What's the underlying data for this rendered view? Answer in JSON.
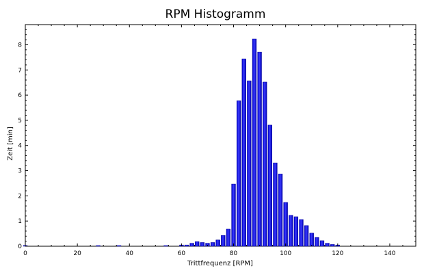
{
  "chart_data": {
    "type": "bar",
    "title": "RPM Histogramm",
    "xlabel": "Trittfrequenz [RPM]",
    "ylabel": "Zeit [min]",
    "xlim": [
      0,
      150
    ],
    "ylim": [
      0,
      8.8
    ],
    "x_ticks": [
      0,
      20,
      40,
      60,
      80,
      100,
      120,
      140
    ],
    "y_ticks": [
      0,
      1,
      2,
      3,
      4,
      5,
      6,
      7,
      8
    ],
    "x_tick_labels": [
      "0",
      "20",
      "40",
      "60",
      "80",
      "100",
      "120",
      "140"
    ],
    "y_tick_labels": [
      "0",
      "1",
      "2",
      "3",
      "4",
      "5",
      "6",
      "7",
      "8"
    ],
    "grid": false,
    "legend": "none",
    "bar_color": "#1a1aff",
    "bar_edge_color": "#00009a",
    "x": [
      0,
      28,
      36,
      54,
      60,
      62,
      64,
      66,
      68,
      70,
      72,
      74,
      76,
      78,
      80,
      82,
      84,
      86,
      88,
      90,
      92,
      94,
      96,
      98,
      100,
      102,
      104,
      106,
      108,
      110,
      112,
      114,
      116,
      118,
      120
    ],
    "values": [
      0.03,
      0.02,
      0.02,
      0.02,
      0.05,
      0.05,
      0.12,
      0.18,
      0.15,
      0.12,
      0.15,
      0.25,
      0.43,
      0.68,
      2.47,
      5.78,
      7.44,
      6.57,
      8.23,
      7.71,
      6.52,
      4.81,
      3.31,
      2.87,
      1.74,
      1.23,
      1.17,
      1.06,
      0.82,
      0.52,
      0.35,
      0.22,
      0.12,
      0.07,
      0.05
    ]
  }
}
